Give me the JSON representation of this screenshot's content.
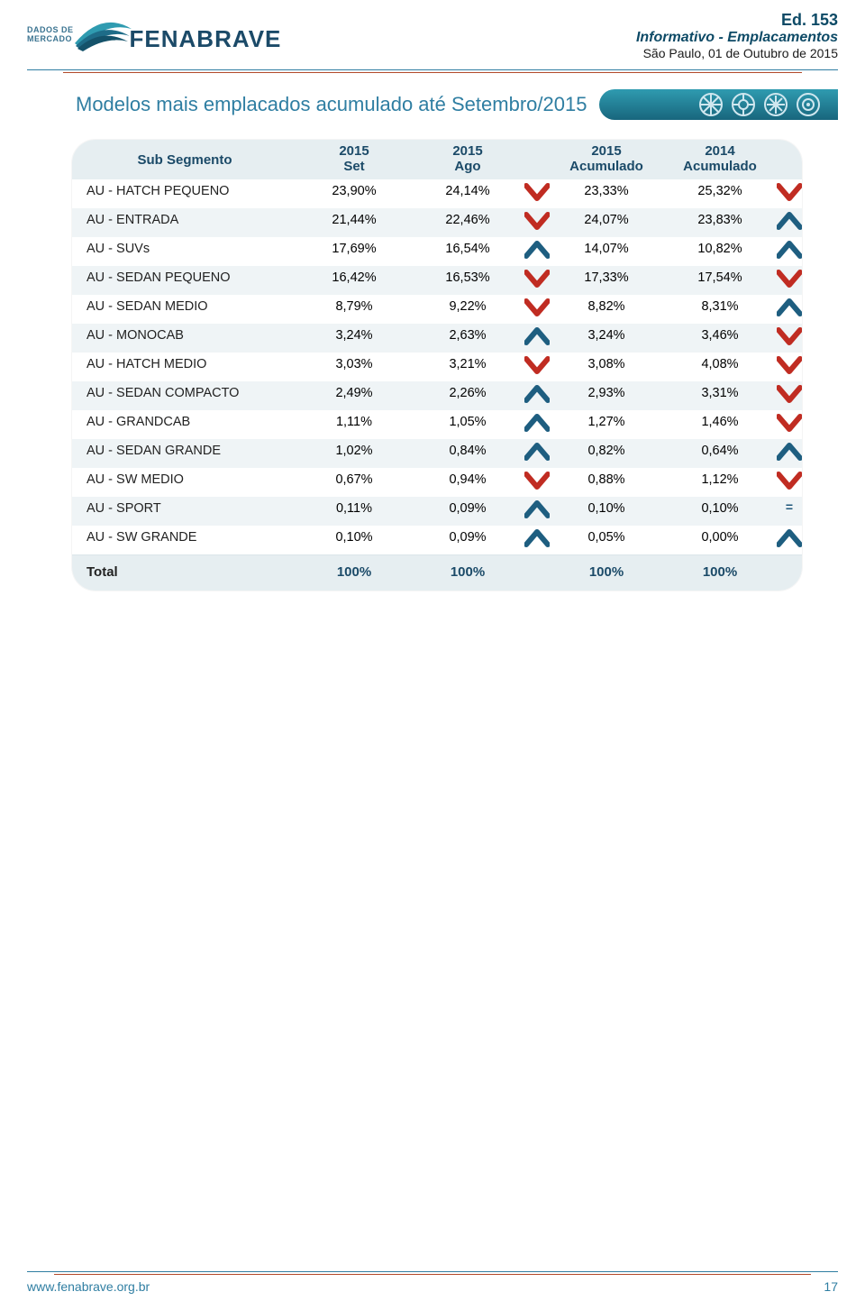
{
  "colors": {
    "brand_blue": "#2f7ea2",
    "brand_dark": "#1b4a68",
    "accent_orange": "#b24a2b",
    "row_stripe": "#eff4f6",
    "header_row": "#e6eef1",
    "arrow_up": "#1e5e80",
    "arrow_down": "#c02c22",
    "text": "#222222",
    "page_bg": "#ffffff"
  },
  "typography": {
    "title_font_size": 22,
    "header_font_size": 15,
    "body_font_size": 14.5
  },
  "header": {
    "dados_line1": "DADOS DE",
    "dados_line2": "MERCADO",
    "brand": "FENABRAVE",
    "edition": "Ed. 153",
    "subtitle": "Informativo - Emplacamentos",
    "dateline": "São Paulo, 01 de Outubro de 2015"
  },
  "title": "Modelos mais emplacados acumulado até Setembro/2015",
  "table": {
    "col_sub": "Sub Segmento",
    "columns": [
      {
        "l1": "2015",
        "l2": "Set"
      },
      {
        "l1": "2015",
        "l2": "Ago"
      },
      {
        "l1": "2015",
        "l2": "Acumulado"
      },
      {
        "l1": "2014",
        "l2": "Acumulado"
      }
    ],
    "rows": [
      {
        "label": "AU - HATCH PEQUENO",
        "v1": "23,90%",
        "v2": "24,14%",
        "a1": "down",
        "v3": "23,33%",
        "v4": "25,32%",
        "a2": "down"
      },
      {
        "label": "AU - ENTRADA",
        "v1": "21,44%",
        "v2": "22,46%",
        "a1": "down",
        "v3": "24,07%",
        "v4": "23,83%",
        "a2": "up"
      },
      {
        "label": "AU - SUVs",
        "v1": "17,69%",
        "v2": "16,54%",
        "a1": "up",
        "v3": "14,07%",
        "v4": "10,82%",
        "a2": "up"
      },
      {
        "label": "AU - SEDAN PEQUENO",
        "v1": "16,42%",
        "v2": "16,53%",
        "a1": "down",
        "v3": "17,33%",
        "v4": "17,54%",
        "a2": "down"
      },
      {
        "label": "AU - SEDAN MEDIO",
        "v1": "8,79%",
        "v2": "9,22%",
        "a1": "down",
        "v3": "8,82%",
        "v4": "8,31%",
        "a2": "up"
      },
      {
        "label": "AU - MONOCAB",
        "v1": "3,24%",
        "v2": "2,63%",
        "a1": "up",
        "v3": "3,24%",
        "v4": "3,46%",
        "a2": "down"
      },
      {
        "label": "AU - HATCH MEDIO",
        "v1": "3,03%",
        "v2": "3,21%",
        "a1": "down",
        "v3": "3,08%",
        "v4": "4,08%",
        "a2": "down"
      },
      {
        "label": "AU - SEDAN COMPACTO",
        "v1": "2,49%",
        "v2": "2,26%",
        "a1": "up",
        "v3": "2,93%",
        "v4": "3,31%",
        "a2": "down"
      },
      {
        "label": "AU - GRANDCAB",
        "v1": "1,11%",
        "v2": "1,05%",
        "a1": "up",
        "v3": "1,27%",
        "v4": "1,46%",
        "a2": "down"
      },
      {
        "label": "AU - SEDAN GRANDE",
        "v1": "1,02%",
        "v2": "0,84%",
        "a1": "up",
        "v3": "0,82%",
        "v4": "0,64%",
        "a2": "up"
      },
      {
        "label": "AU - SW MEDIO",
        "v1": "0,67%",
        "v2": "0,94%",
        "a1": "down",
        "v3": "0,88%",
        "v4": "1,12%",
        "a2": "down"
      },
      {
        "label": "AU - SPORT",
        "v1": "0,11%",
        "v2": "0,09%",
        "a1": "up",
        "v3": "0,10%",
        "v4": "0,10%",
        "a2": "eq"
      },
      {
        "label": "AU - SW GRANDE",
        "v1": "0,10%",
        "v2": "0,09%",
        "a1": "up",
        "v3": "0,05%",
        "v4": "0,00%",
        "a2": "up"
      }
    ],
    "total": {
      "label": "Total",
      "v1": "100%",
      "v2": "100%",
      "v3": "100%",
      "v4": "100%"
    }
  },
  "footer": {
    "url": "www.fenabrave.org.br",
    "page": "17"
  }
}
